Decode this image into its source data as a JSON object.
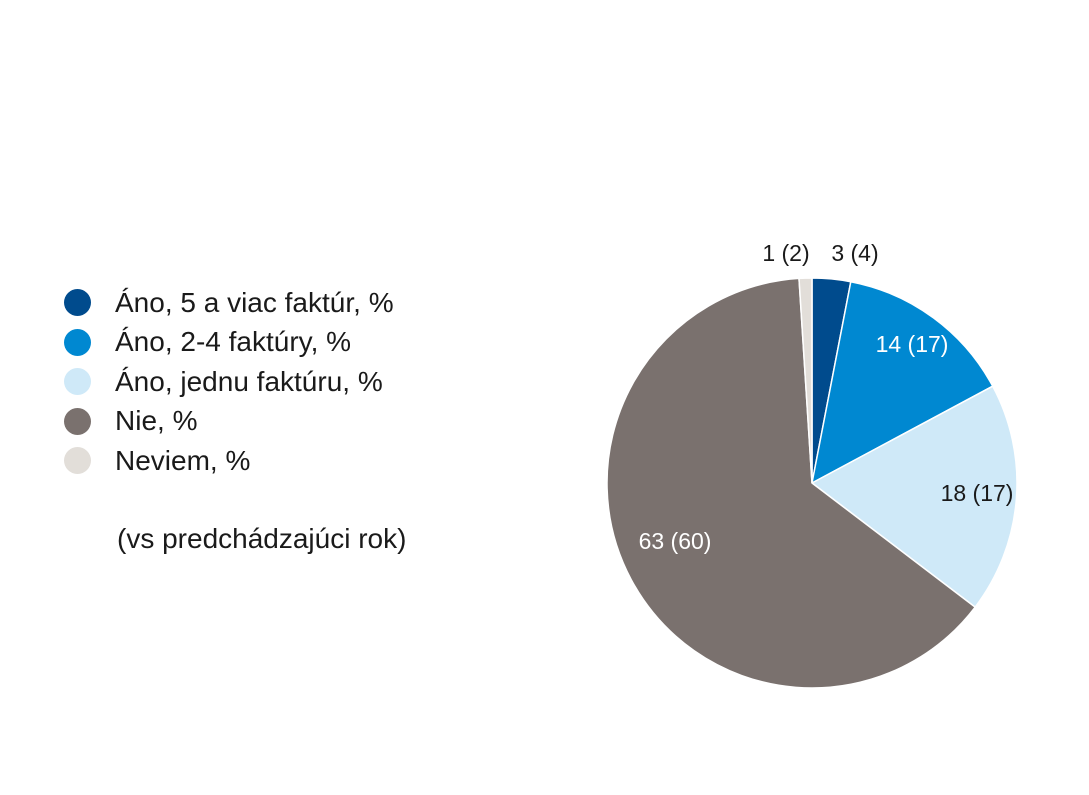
{
  "chart_data": {
    "type": "pie",
    "legend_position": "left",
    "note": "(vs predchádzajúci rok)",
    "slices": [
      {
        "label": "Áno, 5 a viac faktúr, %",
        "value": 3,
        "previous": 4,
        "display": "3 (4)",
        "color": "#004b8d",
        "label_color": "#1a1a1a"
      },
      {
        "label": "Áno, 2-4 faktúry, %",
        "value": 14,
        "previous": 17,
        "display": "14 (17)",
        "color": "#0088d1",
        "label_color": "#ffffff"
      },
      {
        "label": "Áno, jednu faktúru, %",
        "value": 18,
        "previous": 17,
        "display": "18 (17)",
        "color": "#cfe9f8",
        "label_color": "#1a1a1a"
      },
      {
        "label": "Nie, %",
        "value": 63,
        "previous": 60,
        "display": "63 (60)",
        "color": "#7a716e",
        "label_color": "#ffffff"
      },
      {
        "label": "Neviem, %",
        "value": 1,
        "previous": 2,
        "display": "1 (2)",
        "color": "#e2ded9",
        "label_color": "#1a1a1a"
      }
    ]
  }
}
